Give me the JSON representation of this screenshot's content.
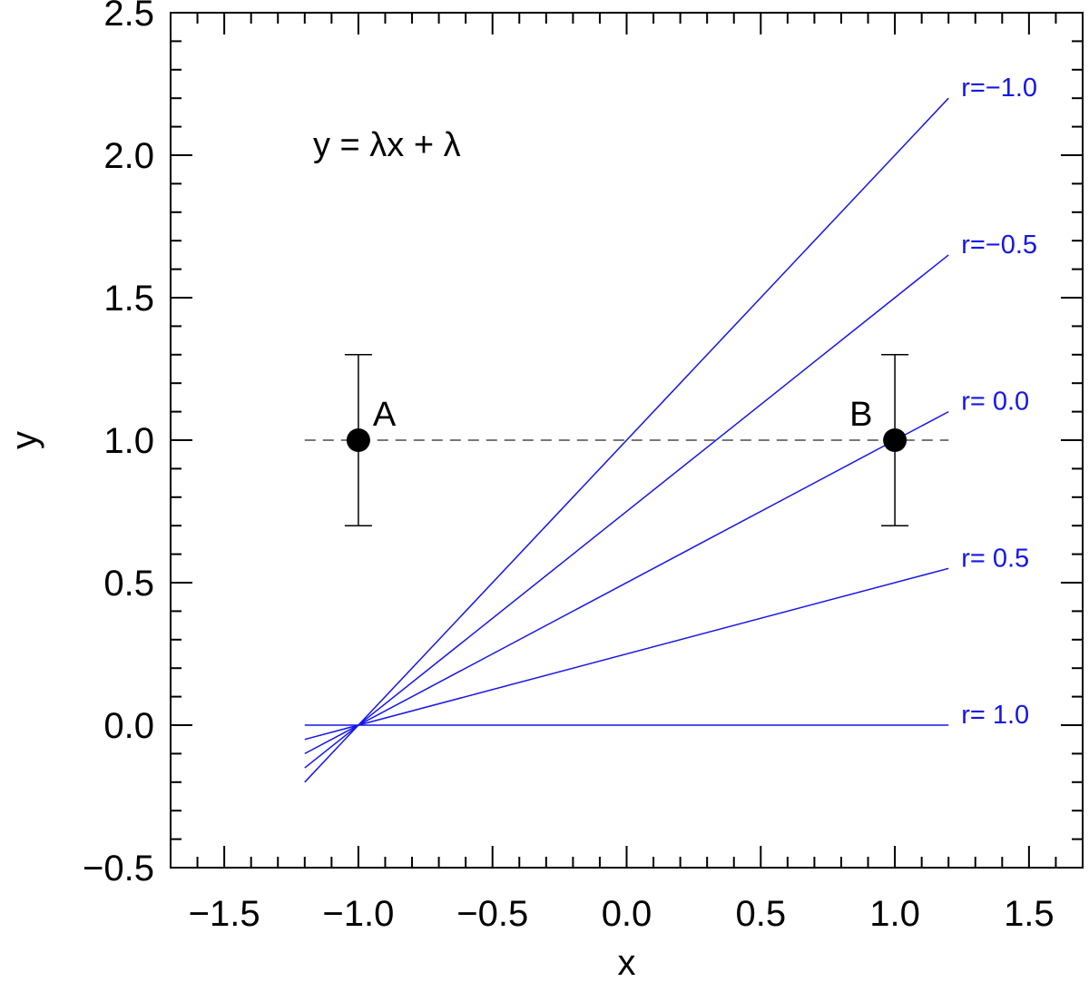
{
  "chart_data": {
    "type": "line",
    "title": "",
    "xlabel": "x",
    "ylabel": "y",
    "xlim": [
      -1.7,
      1.7
    ],
    "ylim": [
      -0.5,
      2.5
    ],
    "x_ticks": [
      -1.5,
      -1.0,
      -0.5,
      0.0,
      0.5,
      1.0,
      1.5
    ],
    "x_tick_labels": [
      "−1.5",
      "−1.0",
      "−0.5",
      "0.0",
      "0.5",
      "1.0",
      "1.5"
    ],
    "y_ticks": [
      -0.5,
      0.0,
      0.5,
      1.0,
      1.5,
      2.0,
      2.5
    ],
    "y_tick_labels": [
      "−0.5",
      "0.0",
      "0.5",
      "1.0",
      "1.5",
      "2.0",
      "2.5"
    ],
    "x_minor_step": 0.1,
    "y_minor_step": 0.1,
    "grid": false,
    "annotation": "y = λx + λ",
    "series_color": "#1515e8",
    "series": [
      {
        "name": "r=−1.0",
        "x": [
          -1.2,
          1.2
        ],
        "y": [
          -0.2,
          2.2
        ]
      },
      {
        "name": "r=−0.5",
        "x": [
          -1.2,
          1.2
        ],
        "y": [
          -0.15,
          1.65
        ]
      },
      {
        "name": "r= 0.0",
        "x": [
          -1.2,
          1.2
        ],
        "y": [
          -0.1,
          1.1
        ]
      },
      {
        "name": "r= 0.5",
        "x": [
          -1.2,
          1.2
        ],
        "y": [
          -0.05,
          0.55
        ]
      },
      {
        "name": "r= 1.0",
        "x": [
          -1.2,
          1.2
        ],
        "y": [
          0.0,
          0.0
        ]
      }
    ],
    "points": [
      {
        "label": "A",
        "x": -1.0,
        "y": 1.0,
        "yerr": 0.3
      },
      {
        "label": "B",
        "x": 1.0,
        "y": 1.0,
        "yerr": 0.3
      }
    ],
    "reference_line": {
      "x": [
        -1.2,
        1.2
      ],
      "y": 1.0,
      "style": "dashed",
      "color": "#777777"
    }
  }
}
